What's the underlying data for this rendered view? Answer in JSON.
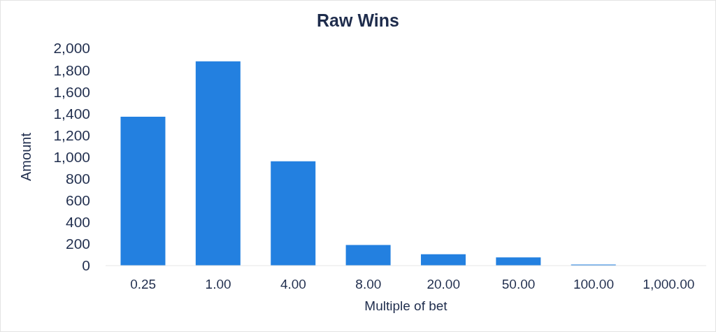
{
  "chart_data": {
    "type": "bar",
    "title": "Raw Wins",
    "xlabel": "Multiple of bet",
    "ylabel": "Amount",
    "categories": [
      "0.25",
      "1.00",
      "4.00",
      "8.00",
      "20.00",
      "50.00",
      "100.00",
      "1,000.00"
    ],
    "values": [
      1370,
      1880,
      960,
      190,
      105,
      75,
      10,
      0
    ],
    "color": "#2380e0",
    "ylim": [
      0,
      2000
    ],
    "yticks": [
      0,
      200,
      400,
      600,
      800,
      {
        "value": 1000,
        "label": "1,000"
      },
      {
        "value": 1200,
        "label": "1,200"
      },
      {
        "value": 1400,
        "label": "1,400"
      },
      {
        "value": 1600,
        "label": "1,600"
      },
      {
        "value": 1800,
        "label": "1,800"
      },
      {
        "value": 2000,
        "label": "2,000"
      }
    ]
  }
}
